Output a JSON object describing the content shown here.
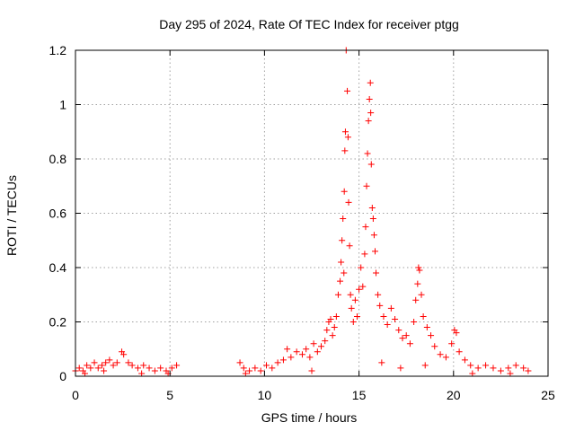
{
  "chart_data": {
    "type": "scatter",
    "title": "Day 295 of 2024, Rate Of TEC Index for receiver ptgg",
    "xlabel": "GPS time / hours",
    "ylabel": "ROTI / TECUs",
    "xlim": [
      0,
      25
    ],
    "ylim": [
      0,
      1.2
    ],
    "xticks": [
      0,
      5,
      10,
      15,
      20,
      25
    ],
    "xtick_labels": [
      "0",
      "5",
      "10",
      "15",
      "20",
      "25"
    ],
    "yticks": [
      0,
      0.2,
      0.4,
      0.6,
      0.8,
      1.0,
      1.2
    ],
    "ytick_labels": [
      "0",
      "0.2",
      "0.4",
      "0.6",
      "0.8",
      "1",
      "1.2"
    ],
    "grid": true,
    "marker": "+",
    "point_color": "#ff0000",
    "series": [
      {
        "points": [
          [
            0.0,
            0.02
          ],
          [
            0.2,
            0.03
          ],
          [
            0.4,
            0.02
          ],
          [
            0.6,
            0.04
          ],
          [
            0.8,
            0.03
          ],
          [
            1.0,
            0.05
          ],
          [
            1.2,
            0.03
          ],
          [
            1.4,
            0.04
          ],
          [
            1.6,
            0.05
          ],
          [
            1.8,
            0.06
          ],
          [
            2.0,
            0.04
          ],
          [
            2.2,
            0.05
          ],
          [
            2.45,
            0.09
          ],
          [
            2.55,
            0.08
          ],
          [
            2.8,
            0.05
          ],
          [
            3.0,
            0.04
          ],
          [
            3.3,
            0.03
          ],
          [
            3.6,
            0.04
          ],
          [
            3.9,
            0.03
          ],
          [
            4.2,
            0.02
          ],
          [
            4.5,
            0.03
          ],
          [
            4.8,
            0.02
          ],
          [
            5.1,
            0.03
          ],
          [
            5.35,
            0.04
          ],
          [
            0.5,
            0.01
          ],
          [
            1.5,
            0.02
          ],
          [
            3.5,
            0.01
          ],
          [
            4.9,
            0.01
          ],
          [
            8.7,
            0.05
          ],
          [
            8.9,
            0.03
          ],
          [
            9.2,
            0.02
          ],
          [
            9.5,
            0.03
          ],
          [
            9.8,
            0.02
          ],
          [
            10.1,
            0.04
          ],
          [
            10.4,
            0.03
          ],
          [
            10.7,
            0.05
          ],
          [
            11.0,
            0.06
          ],
          [
            11.2,
            0.1
          ],
          [
            11.4,
            0.07
          ],
          [
            11.7,
            0.09
          ],
          [
            12.0,
            0.08
          ],
          [
            12.2,
            0.1
          ],
          [
            12.4,
            0.07
          ],
          [
            12.6,
            0.12
          ],
          [
            12.8,
            0.09
          ],
          [
            13.0,
            0.11
          ],
          [
            13.2,
            0.13
          ],
          [
            13.3,
            0.17
          ],
          [
            13.4,
            0.2
          ],
          [
            13.5,
            0.21
          ],
          [
            13.6,
            0.15
          ],
          [
            13.7,
            0.18
          ],
          [
            13.8,
            0.22
          ],
          [
            13.9,
            0.3
          ],
          [
            14.0,
            0.35
          ],
          [
            14.05,
            0.42
          ],
          [
            14.1,
            0.5
          ],
          [
            14.15,
            0.58
          ],
          [
            14.2,
            0.38
          ],
          [
            14.22,
            0.68
          ],
          [
            14.25,
            0.83
          ],
          [
            14.28,
            0.9
          ],
          [
            14.32,
            1.2
          ],
          [
            14.38,
            1.05
          ],
          [
            14.42,
            0.88
          ],
          [
            14.45,
            0.64
          ],
          [
            14.5,
            0.48
          ],
          [
            14.55,
            0.3
          ],
          [
            14.6,
            0.25
          ],
          [
            14.7,
            0.2
          ],
          [
            14.8,
            0.28
          ],
          [
            14.9,
            0.22
          ],
          [
            15.0,
            0.32
          ],
          [
            15.1,
            0.4
          ],
          [
            15.2,
            0.33
          ],
          [
            15.3,
            0.45
          ],
          [
            15.35,
            0.55
          ],
          [
            15.4,
            0.7
          ],
          [
            15.45,
            0.82
          ],
          [
            15.5,
            0.94
          ],
          [
            15.55,
            1.02
          ],
          [
            15.6,
            1.08
          ],
          [
            15.62,
            0.97
          ],
          [
            15.65,
            0.78
          ],
          [
            15.7,
            0.62
          ],
          [
            15.75,
            0.58
          ],
          [
            15.8,
            0.52
          ],
          [
            15.85,
            0.46
          ],
          [
            15.9,
            0.38
          ],
          [
            16.0,
            0.3
          ],
          [
            16.1,
            0.26
          ],
          [
            16.3,
            0.22
          ],
          [
            16.5,
            0.19
          ],
          [
            16.7,
            0.25
          ],
          [
            16.9,
            0.21
          ],
          [
            17.1,
            0.17
          ],
          [
            17.3,
            0.14
          ],
          [
            17.5,
            0.15
          ],
          [
            17.7,
            0.12
          ],
          [
            17.9,
            0.2
          ],
          [
            18.0,
            0.28
          ],
          [
            18.1,
            0.34
          ],
          [
            18.15,
            0.4
          ],
          [
            18.2,
            0.39
          ],
          [
            18.3,
            0.3
          ],
          [
            18.4,
            0.22
          ],
          [
            18.6,
            0.18
          ],
          [
            18.8,
            0.15
          ],
          [
            19.0,
            0.11
          ],
          [
            19.3,
            0.08
          ],
          [
            19.6,
            0.07
          ],
          [
            19.9,
            0.12
          ],
          [
            20.05,
            0.17
          ],
          [
            20.15,
            0.16
          ],
          [
            20.3,
            0.09
          ],
          [
            20.6,
            0.06
          ],
          [
            20.9,
            0.04
          ],
          [
            21.3,
            0.03
          ],
          [
            21.7,
            0.04
          ],
          [
            22.1,
            0.03
          ],
          [
            22.5,
            0.02
          ],
          [
            22.9,
            0.03
          ],
          [
            23.3,
            0.04
          ],
          [
            23.7,
            0.03
          ],
          [
            23.95,
            0.02
          ],
          [
            9.0,
            0.01
          ],
          [
            12.5,
            0.02
          ],
          [
            16.2,
            0.05
          ],
          [
            17.2,
            0.03
          ],
          [
            18.5,
            0.04
          ],
          [
            21.0,
            0.01
          ],
          [
            23.0,
            0.01
          ]
        ]
      }
    ]
  }
}
